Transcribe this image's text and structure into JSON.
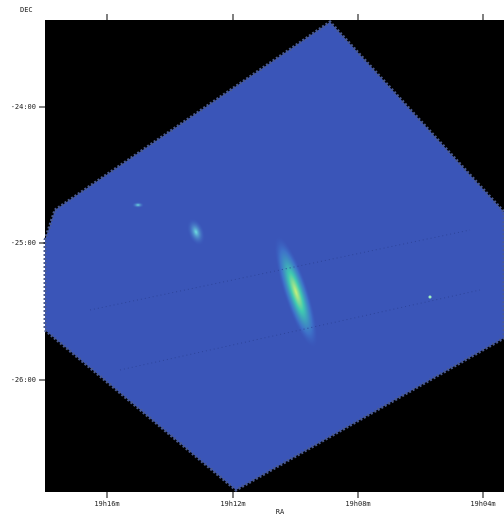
{
  "plot": {
    "y_axis_label": "DEC",
    "x_axis_label": "RA",
    "x_tick_labels": [
      "19h16m",
      "19h12m",
      "19h08m",
      "19h04m"
    ],
    "y_tick_labels": [
      "-24:00",
      "-25:00",
      "-26:00"
    ]
  }
}
